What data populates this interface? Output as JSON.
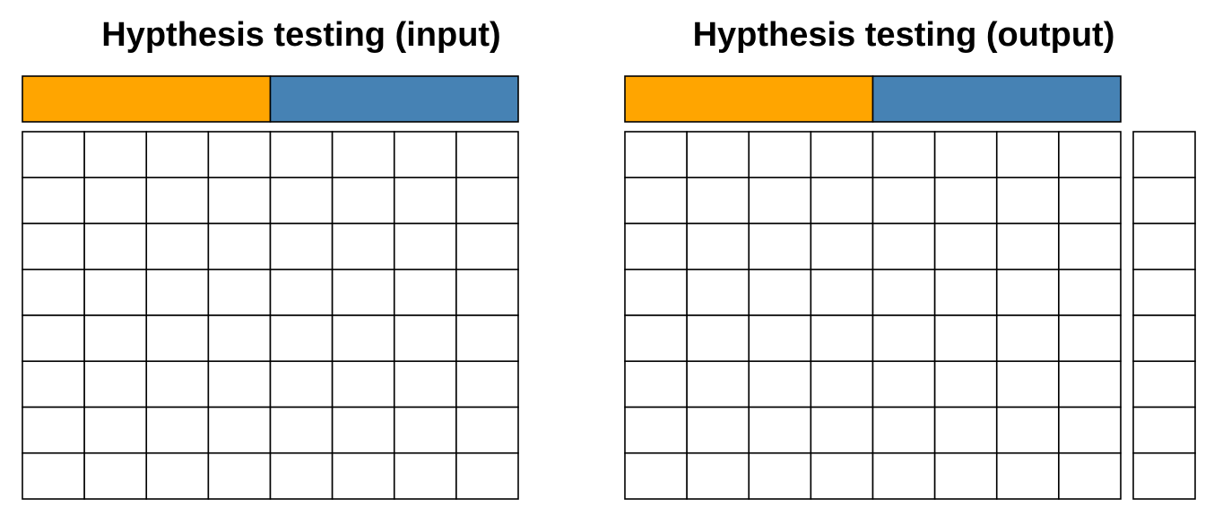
{
  "panels": {
    "input": {
      "title": "Hypthesis testing (input)",
      "group_bar": [
        {
          "color": "#FFA500"
        },
        {
          "color": "#4682B4"
        }
      ],
      "grid": {
        "rows": 8,
        "cols": 8
      }
    },
    "output": {
      "title": "Hypthesis testing (output)",
      "group_bar": [
        {
          "color": "#FFA500"
        },
        {
          "color": "#4682B4"
        }
      ],
      "grid": {
        "rows": 8,
        "cols": 8
      },
      "result_column": {
        "rows": 8,
        "cols": 1
      }
    }
  },
  "colors": {
    "stroke": "#000000",
    "cell_fill": "#FFFFFF"
  }
}
